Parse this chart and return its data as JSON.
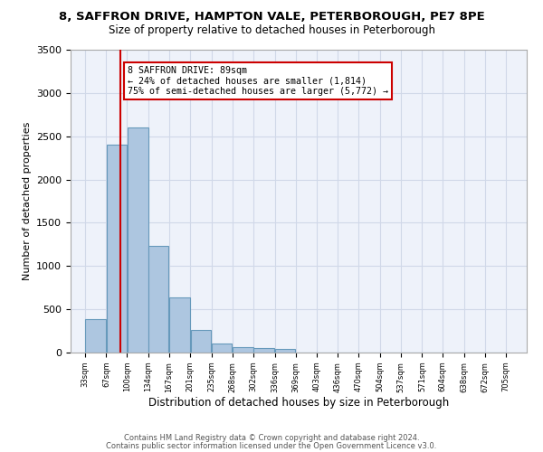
{
  "title_line1": "8, SAFFRON DRIVE, HAMPTON VALE, PETERBOROUGH, PE7 8PE",
  "title_line2": "Size of property relative to detached houses in Peterborough",
  "xlabel": "Distribution of detached houses by size in Peterborough",
  "ylabel": "Number of detached properties",
  "bar_left_edges": [
    33,
    67,
    100,
    134,
    167,
    201,
    235,
    268,
    302,
    336,
    369,
    403,
    436,
    470,
    504,
    537,
    571,
    604,
    638,
    672
  ],
  "bar_widths": [
    34,
    33,
    34,
    33,
    34,
    34,
    33,
    34,
    34,
    33,
    34,
    33,
    34,
    34,
    33,
    34,
    33,
    34,
    34,
    33
  ],
  "bar_heights": [
    390,
    2400,
    2600,
    1230,
    640,
    260,
    100,
    60,
    55,
    45,
    0,
    0,
    0,
    0,
    0,
    0,
    0,
    0,
    0,
    0
  ],
  "bar_color": "#adc6e0",
  "bar_edge_color": "#6699bb",
  "x_tick_labels": [
    "33sqm",
    "67sqm",
    "100sqm",
    "134sqm",
    "167sqm",
    "201sqm",
    "235sqm",
    "268sqm",
    "302sqm",
    "336sqm",
    "369sqm",
    "403sqm",
    "436sqm",
    "470sqm",
    "504sqm",
    "537sqm",
    "571sqm",
    "604sqm",
    "638sqm",
    "672sqm",
    "705sqm"
  ],
  "x_tick_positions": [
    33,
    67,
    100,
    134,
    167,
    201,
    235,
    268,
    302,
    336,
    369,
    403,
    436,
    470,
    504,
    537,
    571,
    604,
    638,
    672,
    705
  ],
  "ylim": [
    0,
    3500
  ],
  "xlim": [
    10,
    738
  ],
  "property_line_x": 89,
  "annotation_text": "8 SAFFRON DRIVE: 89sqm\n← 24% of detached houses are smaller (1,814)\n75% of semi-detached houses are larger (5,772) →",
  "annotation_box_color": "#ffffff",
  "annotation_border_color": "#cc0000",
  "grid_color": "#d0d8e8",
  "background_color": "#eef2fa",
  "footer_line1": "Contains HM Land Registry data © Crown copyright and database right 2024.",
  "footer_line2": "Contains public sector information licensed under the Open Government Licence v3.0."
}
